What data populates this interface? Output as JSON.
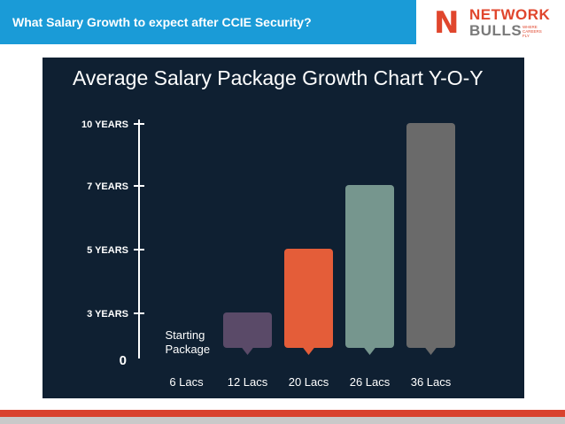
{
  "header": {
    "title": "What Salary Growth to expect after CCIE Security?"
  },
  "logo": {
    "line1": "NETWORK",
    "line2": "BULLS",
    "tagline": "WHERE CAREERS FLY"
  },
  "colors": {
    "header": "#1a9bd7",
    "panel": "#0f2032",
    "accent": "#e0462d"
  },
  "chart_data": {
    "type": "bar",
    "title": "Average Salary Package Growth Chart Y-O-Y",
    "categories": [
      "6 Lacs",
      "12 Lacs",
      "20 Lacs",
      "26 Lacs",
      "36 Lacs"
    ],
    "series": [
      {
        "values": [
          0,
          3,
          5,
          7,
          10
        ]
      }
    ],
    "y_ticks": [
      {
        "value": 0,
        "label": "0"
      },
      {
        "value": 3,
        "label": "3 YEARS"
      },
      {
        "value": 5,
        "label": "5 YEARS"
      },
      {
        "value": 7,
        "label": "7 YEARS"
      },
      {
        "value": 10,
        "label": "10 YEARS"
      }
    ],
    "bar_colors": [
      "",
      "#5a4a68",
      "#e45d39",
      "#76968e",
      "#6a6a6a"
    ],
    "annotation": {
      "category": "6 Lacs",
      "lines": [
        "Starting",
        "Package"
      ]
    },
    "ylim": [
      0,
      10
    ],
    "grid": false
  }
}
